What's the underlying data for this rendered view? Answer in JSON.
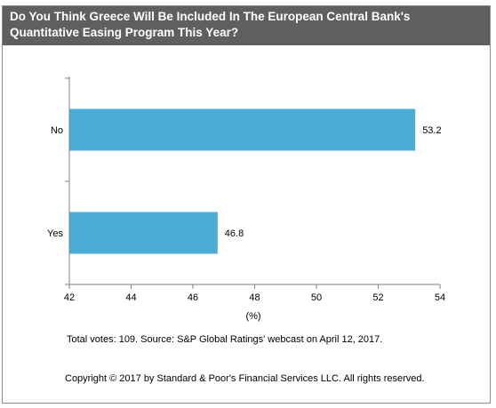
{
  "title": {
    "line1": "Do You Think Greece Will Be Included In The European Central Bank's",
    "line2": "Quantitative Easing Program This Year?"
  },
  "colors": {
    "bar": "#4bacd6",
    "title_bg": "#5f5f5f"
  },
  "chart_data": {
    "type": "bar",
    "orientation": "horizontal",
    "categories": [
      "No",
      "Yes"
    ],
    "values": [
      53.2,
      46.8
    ],
    "data_labels": [
      "53.2",
      "46.8"
    ],
    "xlabel": "(%)",
    "ylabel": "",
    "xlim": [
      42,
      54
    ],
    "xticks": [
      42,
      44,
      46,
      48,
      50,
      52,
      54
    ],
    "grid": false,
    "legend": "none"
  },
  "footnotes": {
    "votes": "Total votes: 109. Source: S&P Global Ratings' webcast on April 12, 2017.",
    "copyright": "Copyright © 2017 by Standard & Poor's Financial Services LLC. All rights reserved."
  }
}
